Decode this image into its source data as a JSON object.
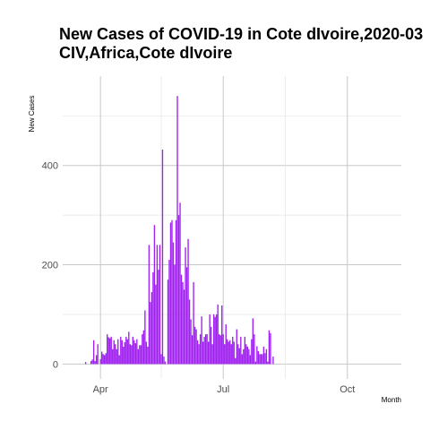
{
  "chart_data": {
    "type": "bar",
    "title_line1": "New Cases of COVID-19 in Cote dIvoire,2020-03",
    "title_line2": "CIV,Africa,Cote dIvoire",
    "xlabel": "Month",
    "ylabel": "New Cases",
    "bar_color": "#a020f0",
    "start_date": "2020-03-11",
    "xlim": [
      "2020-03-04",
      "2020-11-10"
    ],
    "ylim": [
      -30,
      580
    ],
    "y_ticks": [
      0,
      200,
      400
    ],
    "y_tick_labels": [
      "0",
      "200",
      "400"
    ],
    "x_ticks": [
      "2020-04-01",
      "2020-07-01",
      "2020-10-01"
    ],
    "x_tick_labels": [
      "Apr",
      "Jul",
      "Oct"
    ],
    "x_minor_ticks": [
      "2020-05-16",
      "2020-08-16"
    ],
    "grid": true,
    "values": [
      0,
      0,
      0,
      0,
      0,
      0,
      0,
      0,
      0,
      0,
      4,
      0,
      0,
      0,
      6,
      9,
      48,
      6,
      18,
      40,
      0,
      10,
      25,
      20,
      18,
      22,
      60,
      54,
      52,
      55,
      30,
      48,
      40,
      30,
      50,
      18,
      55,
      48,
      35,
      44,
      55,
      50,
      65,
      40,
      38,
      55,
      48,
      42,
      50,
      30,
      38,
      38,
      60,
      68,
      108,
      45,
      35,
      240,
      125,
      145,
      185,
      280,
      160,
      240,
      190,
      240,
      20,
      432,
      15,
      5,
      0,
      170,
      210,
      285,
      290,
      245,
      200,
      290,
      540,
      300,
      325,
      180,
      165,
      150,
      235,
      195,
      252,
      130,
      90,
      58,
      165,
      75,
      70,
      48,
      40,
      60,
      96,
      45,
      55,
      60,
      60,
      45,
      100,
      75,
      40,
      100,
      95,
      100,
      120,
      60,
      58,
      118,
      60,
      40,
      80,
      50,
      45,
      48,
      40,
      55,
      45,
      12,
      70,
      40,
      32,
      55,
      20,
      30,
      55,
      40,
      35,
      30,
      18,
      50,
      92,
      60,
      5,
      36,
      26,
      20,
      20,
      20,
      35,
      22,
      30,
      5,
      68,
      62,
      0,
      15
    ]
  }
}
